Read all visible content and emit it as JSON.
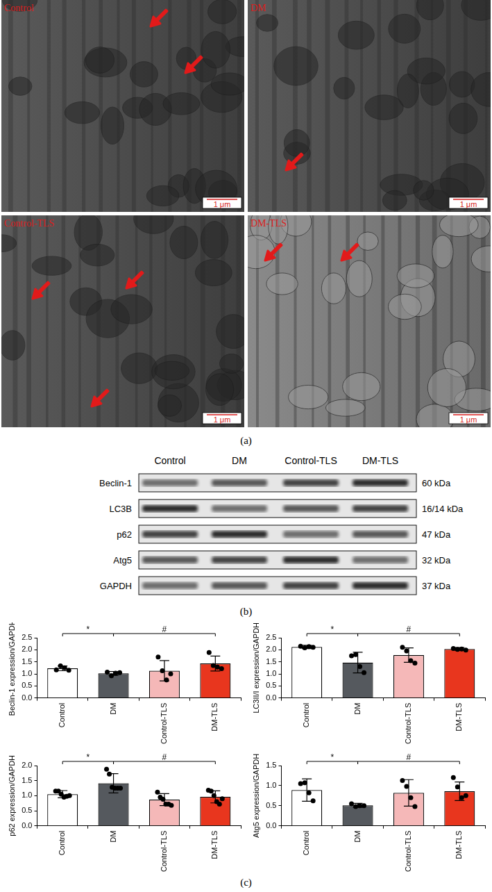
{
  "panels": {
    "a": {
      "label": "(a)",
      "images": [
        {
          "title": "Control",
          "scale_bar": "1 μm"
        },
        {
          "title": "DM",
          "scale_bar": "1 μm"
        },
        {
          "title": "Control-TLS",
          "scale_bar": "1 μm"
        },
        {
          "title": "DM-TLS",
          "scale_bar": "1 μm"
        }
      ]
    },
    "b": {
      "label": "(b)",
      "columns": [
        "Control",
        "DM",
        "Control-TLS",
        "DM-TLS"
      ],
      "rows": [
        {
          "protein": "Beclin-1",
          "size": "60 kDa"
        },
        {
          "protein": "LC3B",
          "size": "16/14 kDa"
        },
        {
          "protein": "p62",
          "size": "47 kDa"
        },
        {
          "protein": "Atg5",
          "size": "32 kDa"
        },
        {
          "protein": "GAPDH",
          "size": "37 kDa"
        }
      ]
    },
    "c": {
      "label": "(c)"
    }
  },
  "chart_data": [
    {
      "type": "bar",
      "y_label": "Beclin-1 expression/GAPDH",
      "categories": [
        "Control",
        "DM",
        "Control-TLS",
        "DM-TLS"
      ],
      "values": [
        1.23,
        1.02,
        1.13,
        1.43
      ],
      "error": [
        0.1,
        0.08,
        0.42,
        0.31
      ],
      "points": [
        [
          1.17,
          1.33,
          1.25,
          1.15
        ],
        [
          1.07,
          0.92,
          1.03,
          1.05
        ],
        [
          1.7,
          1.13,
          0.75,
          1.0
        ],
        [
          1.89,
          1.35,
          1.28,
          1.22
        ]
      ],
      "colors": [
        "#ffffff",
        "#55595e",
        "#f5b8b8",
        "#e8361e"
      ],
      "significance": [
        {
          "from": "Control",
          "to": "DM",
          "label": "*"
        },
        {
          "from": "DM",
          "to": "DM-TLS",
          "label": "#"
        }
      ],
      "ylim": [
        0,
        2.5
      ],
      "yticks": [
        {
          "value": 0,
          "label": "0.0"
        },
        0.5,
        {
          "value": 1,
          "label": "1.0"
        },
        1.5,
        {
          "value": 2,
          "label": "2.0"
        },
        2.5
      ],
      "grid": false
    },
    {
      "type": "bar",
      "y_label": "LC3II/I expression/GAPDH",
      "categories": [
        "Control",
        "DM",
        "Control-TLS",
        "DM-TLS"
      ],
      "values": [
        2.12,
        1.47,
        1.78,
        2.03
      ],
      "error": [
        0.07,
        0.43,
        0.3,
        0.06
      ],
      "points": [
        [
          2.15,
          2.08,
          2.13,
          2.1
        ],
        [
          1.75,
          1.8,
          1.3,
          1.05
        ],
        [
          2.1,
          1.95,
          1.55,
          1.45
        ],
        [
          2.05,
          2.02,
          2.03,
          1.99
        ]
      ],
      "colors": [
        "#ffffff",
        "#55595e",
        "#f5b8b8",
        "#e8361e"
      ],
      "significance": [
        {
          "from": "Control",
          "to": "DM",
          "label": "*"
        },
        {
          "from": "DM",
          "to": "DM-TLS",
          "label": "#"
        }
      ],
      "ylim": [
        0,
        2.5
      ],
      "yticks": [
        {
          "value": 0,
          "label": "0.0"
        },
        0.5,
        {
          "value": 1,
          "label": "1.0"
        },
        1.5,
        {
          "value": 2,
          "label": "2.0"
        },
        2.5
      ],
      "grid": false
    },
    {
      "type": "bar",
      "y_label": "p62 expression/GAPDH",
      "categories": [
        "Control",
        "DM",
        "Control-TLS",
        "DM-TLS"
      ],
      "values": [
        1.05,
        1.41,
        0.87,
        0.96
      ],
      "error": [
        0.12,
        0.32,
        0.2,
        0.2
      ],
      "points": [
        [
          1.15,
          1.15,
          1.05,
          0.95,
          0.98,
          1.0
        ],
        [
          1.88,
          1.72,
          1.28,
          1.25,
          1.25,
          1.25
        ],
        [
          1.12,
          0.95,
          0.88,
          0.72,
          0.72,
          0.68
        ],
        [
          1.18,
          1.15,
          1.0,
          0.8,
          0.72,
          0.9
        ]
      ],
      "colors": [
        "#ffffff",
        "#55595e",
        "#f5b8b8",
        "#e8361e"
      ],
      "significance": [
        {
          "from": "Control",
          "to": "DM",
          "label": "*"
        },
        {
          "from": "DM",
          "to": "DM-TLS",
          "label": "#"
        }
      ],
      "ylim": [
        0,
        2
      ],
      "yticks": [
        {
          "value": 0,
          "label": "0.0"
        },
        0.5,
        {
          "value": 1,
          "label": "1.0"
        },
        1.5,
        {
          "value": 2,
          "label": "2.0"
        }
      ],
      "grid": false
    },
    {
      "type": "bar",
      "y_label": "Atg5 expression/GAPDH",
      "categories": [
        "Control",
        "DM",
        "Control-TLS",
        "DM-TLS"
      ],
      "values": [
        0.89,
        0.51,
        0.82,
        0.86
      ],
      "error": [
        0.28,
        0.05,
        0.33,
        0.23
      ],
      "points": [
        [
          1.05,
          1.07,
          0.82,
          0.62
        ],
        [
          0.55,
          0.48,
          0.5,
          0.5
        ],
        [
          1.13,
          0.98,
          0.7,
          0.48
        ],
        [
          1.2,
          0.97,
          0.7,
          0.75
        ]
      ],
      "colors": [
        "#ffffff",
        "#55595e",
        "#f5b8b8",
        "#e8361e"
      ],
      "significance": [
        {
          "from": "Control",
          "to": "DM",
          "label": "*"
        },
        {
          "from": "DM",
          "to": "DM-TLS",
          "label": "#"
        }
      ],
      "ylim": [
        0,
        1.5
      ],
      "yticks": [
        {
          "value": 0,
          "label": "0.0"
        },
        0.5,
        {
          "value": 1,
          "label": "1.0"
        },
        1.5
      ],
      "grid": false
    }
  ]
}
